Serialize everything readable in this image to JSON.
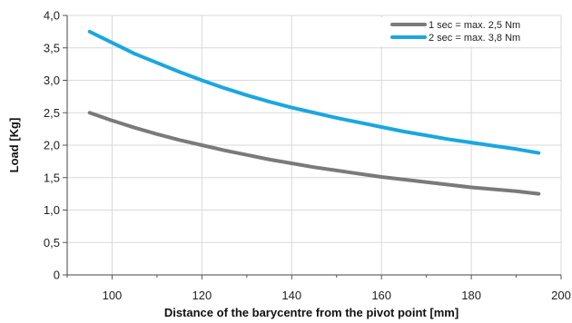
{
  "chart_data": {
    "type": "line",
    "xlabel": "Distance of the barycentre from the pivot point [mm]",
    "ylabel": "Load [Kg]",
    "xlim": [
      90,
      200
    ],
    "ylim": [
      0,
      4.0
    ],
    "x_ticks": [
      100,
      120,
      140,
      160,
      180,
      200
    ],
    "x_tick_labels": [
      "100",
      "120",
      "140",
      "160",
      "180",
      "200"
    ],
    "y_ticks": [
      0,
      0.5,
      1.0,
      1.5,
      2.0,
      2.5,
      3.0,
      3.5,
      4.0
    ],
    "y_tick_labels": [
      "0",
      "0,5",
      "1,0",
      "1,5",
      "2,0",
      "2,5",
      "3,0",
      "3,5",
      "4,0"
    ],
    "grid": true,
    "legend_position": "top-right",
    "series": [
      {
        "name": "1 sec = max. 2,5 Nm",
        "color": "#7a7a7a",
        "x": [
          95,
          100,
          105,
          110,
          115,
          120,
          125,
          130,
          135,
          140,
          145,
          150,
          155,
          160,
          165,
          170,
          175,
          180,
          185,
          190,
          195
        ],
        "values": [
          2.5,
          2.38,
          2.27,
          2.17,
          2.08,
          2.0,
          1.92,
          1.85,
          1.78,
          1.72,
          1.66,
          1.61,
          1.56,
          1.51,
          1.47,
          1.43,
          1.39,
          1.35,
          1.32,
          1.29,
          1.25
        ]
      },
      {
        "name": "2 sec = max. 3,8 Nm",
        "color": "#1aa7e0",
        "x": [
          95,
          100,
          105,
          110,
          115,
          120,
          125,
          130,
          135,
          140,
          145,
          150,
          155,
          160,
          165,
          170,
          175,
          180,
          185,
          190,
          195
        ],
        "values": [
          3.75,
          3.58,
          3.41,
          3.27,
          3.13,
          3.0,
          2.88,
          2.77,
          2.67,
          2.58,
          2.5,
          2.42,
          2.35,
          2.28,
          2.21,
          2.15,
          2.09,
          2.04,
          1.99,
          1.94,
          1.88
        ]
      }
    ]
  }
}
